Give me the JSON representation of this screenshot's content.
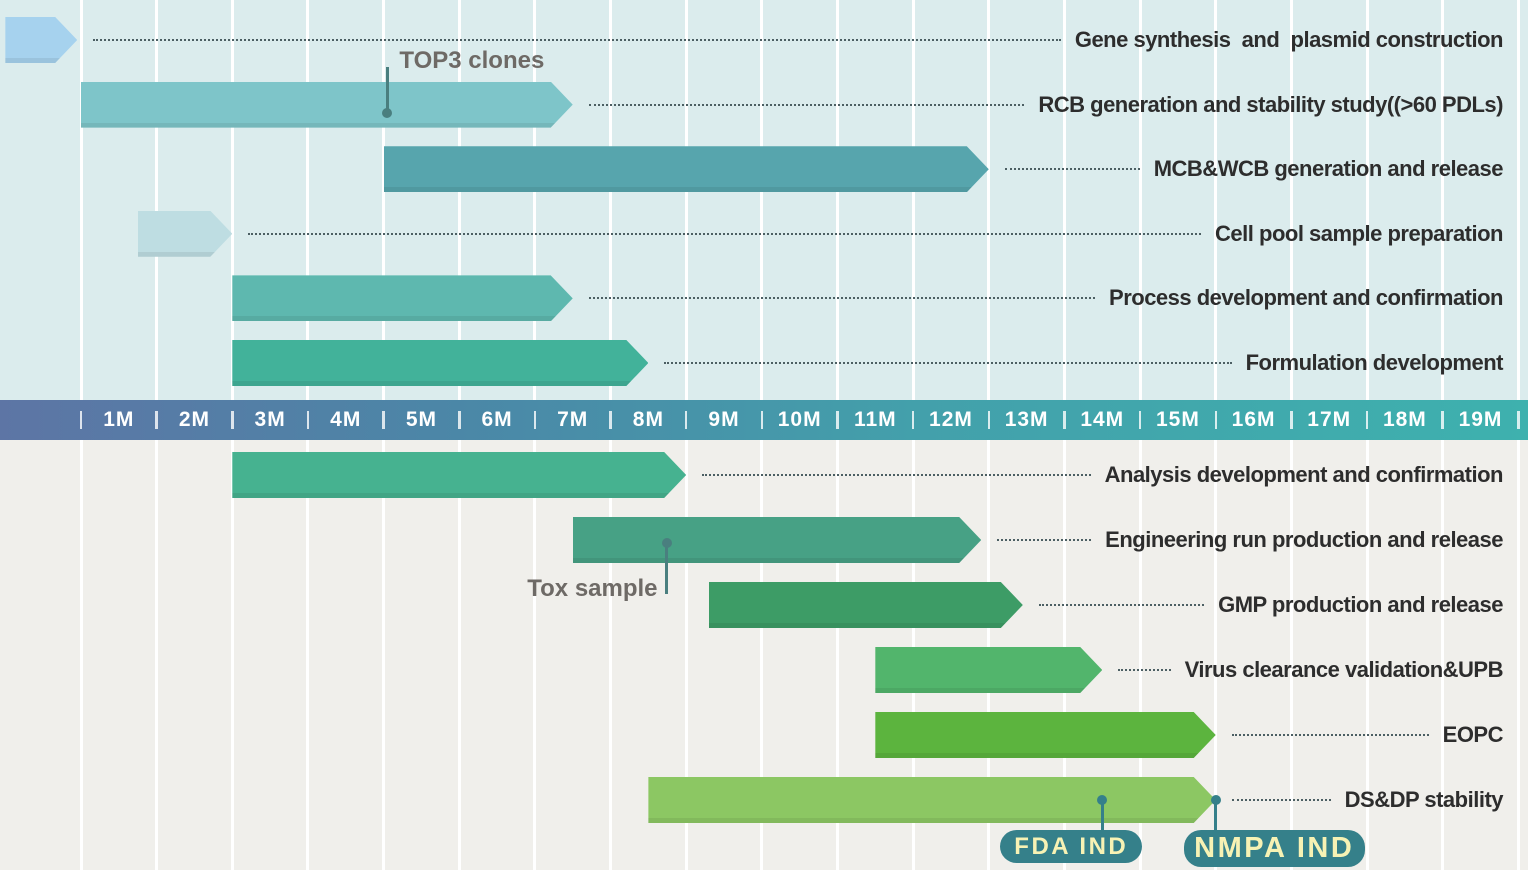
{
  "chart_data": {
    "type": "bar",
    "variant": "gantt-timeline",
    "x_unit": "month",
    "tick_labels": [
      "1M",
      "2M",
      "3M",
      "4M",
      "5M",
      "6M",
      "7M",
      "8M",
      "9M",
      "10M",
      "11M",
      "12M",
      "13M",
      "14M",
      "15M",
      "16M",
      "17M",
      "18M",
      "19M"
    ],
    "legend_position": "none",
    "grid": true,
    "tasks": [
      {
        "label": "Gene synthesis  and  plasmid construction",
        "section": "top",
        "start": -1.0,
        "end": -0.05,
        "color": "#a6d2ee"
      },
      {
        "label": "RCB generation and stability study((>60 PDLs)",
        "section": "top",
        "start": 0.0,
        "end": 6.5,
        "color": "#7ec5c9"
      },
      {
        "label": "MCB&WCB generation and release",
        "section": "top",
        "start": 4.0,
        "end": 12.0,
        "color": "#57a5ad"
      },
      {
        "label": "Cell pool sample preparation",
        "section": "top",
        "start": 0.75,
        "end": 2.0,
        "color": "#bedde2"
      },
      {
        "label": "Process development and confirmation",
        "section": "top",
        "start": 2.0,
        "end": 6.5,
        "color": "#5eb8af"
      },
      {
        "label": "Formulation development",
        "section": "top",
        "start": 2.0,
        "end": 7.5,
        "color": "#42b29a"
      },
      {
        "label": "Analysis development and confirmation",
        "section": "bottom",
        "start": 2.0,
        "end": 8.0,
        "color": "#46b290"
      },
      {
        "label": "Engineering run production and release",
        "section": "bottom",
        "start": 6.5,
        "end": 11.9,
        "color": "#47a185"
      },
      {
        "label": "GMP production and release",
        "section": "bottom",
        "start": 8.3,
        "end": 12.45,
        "color": "#3d9c66"
      },
      {
        "label": "Virus clearance validation&UPB",
        "section": "bottom",
        "start": 10.5,
        "end": 13.5,
        "color": "#52b56c"
      },
      {
        "label": "EOPC",
        "section": "bottom",
        "start": 10.5,
        "end": 15.0,
        "color": "#5cb43e"
      },
      {
        "label": "DS&DP stability",
        "section": "bottom",
        "start": 7.5,
        "end": 15.0,
        "color": "#8cc763"
      }
    ],
    "annotations": [
      {
        "label": "TOP3 clones",
        "month": 4.05,
        "attached_to": "RCB generation and stability study((>60 PDLs)",
        "placement": "above"
      },
      {
        "label": "Tox sample",
        "month": 7.74,
        "attached_to": "Engineering run production and release",
        "placement": "below"
      }
    ],
    "milestones": [
      {
        "label": "FDA IND",
        "month": 13.5,
        "attached_to": "DS&DP stability"
      },
      {
        "label": "NMPA IND",
        "month": 15.0,
        "attached_to": "DS&DP stability"
      }
    ]
  },
  "colors": {
    "top_section_bg": "#dbeced",
    "bottom_section_bg": "#f0efeb",
    "gridline": "#ffffff",
    "axis_text": "#ffffff",
    "task_label_text": "#2d2d2d",
    "leader_dots": "#4c5f63",
    "annotation_text": "#6e6a66",
    "annotation_connector": "#4a7f7f",
    "milestone_bg": "#35808a",
    "milestone_text": "#f7f2b4"
  }
}
